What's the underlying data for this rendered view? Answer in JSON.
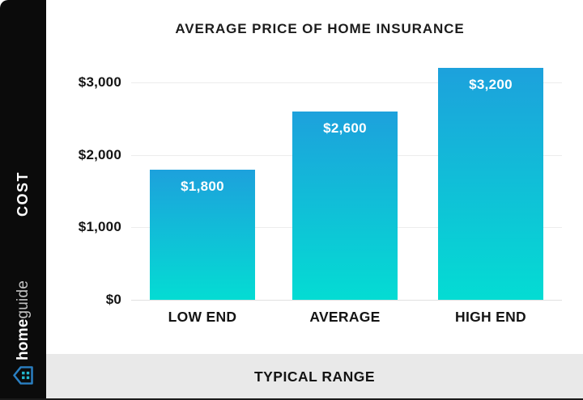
{
  "sidebar": {
    "cost_label": "COST",
    "logo": {
      "bold_part": "home",
      "light_part": "guide",
      "icon_outline_color": "#2a7fc2",
      "icon_dot_color": "#23b9cf"
    }
  },
  "chart_data": {
    "type": "bar",
    "title": "AVERAGE PRICE OF HOME INSURANCE",
    "categories": [
      "LOW END",
      "AVERAGE",
      "HIGH END"
    ],
    "values": [
      1800,
      2600,
      3200
    ],
    "value_labels": [
      "$1,800",
      "$2,600",
      "$3,200"
    ],
    "y_ticks": [
      {
        "value": 0,
        "label": "$0"
      },
      {
        "value": 1000,
        "label": "$1,000"
      },
      {
        "value": 2000,
        "label": "$2,000"
      },
      {
        "value": 3000,
        "label": "$3,000"
      }
    ],
    "ylim": [
      0,
      3200
    ],
    "xlabel": "TYPICAL RANGE",
    "side_ylabel": "COST",
    "grid": true,
    "legend_position": "none",
    "colors": {
      "bar_gradient_top": "#1da1dc",
      "bar_gradient_bottom": "#04dcd3",
      "gridline": "#ececec",
      "title_text": "#1c1c1c",
      "sidebar_background": "#0b0b0b",
      "band_background": "#e9e9e9",
      "bar_value_text": "#ffffff"
    }
  },
  "footer": {
    "label": "TYPICAL RANGE"
  }
}
